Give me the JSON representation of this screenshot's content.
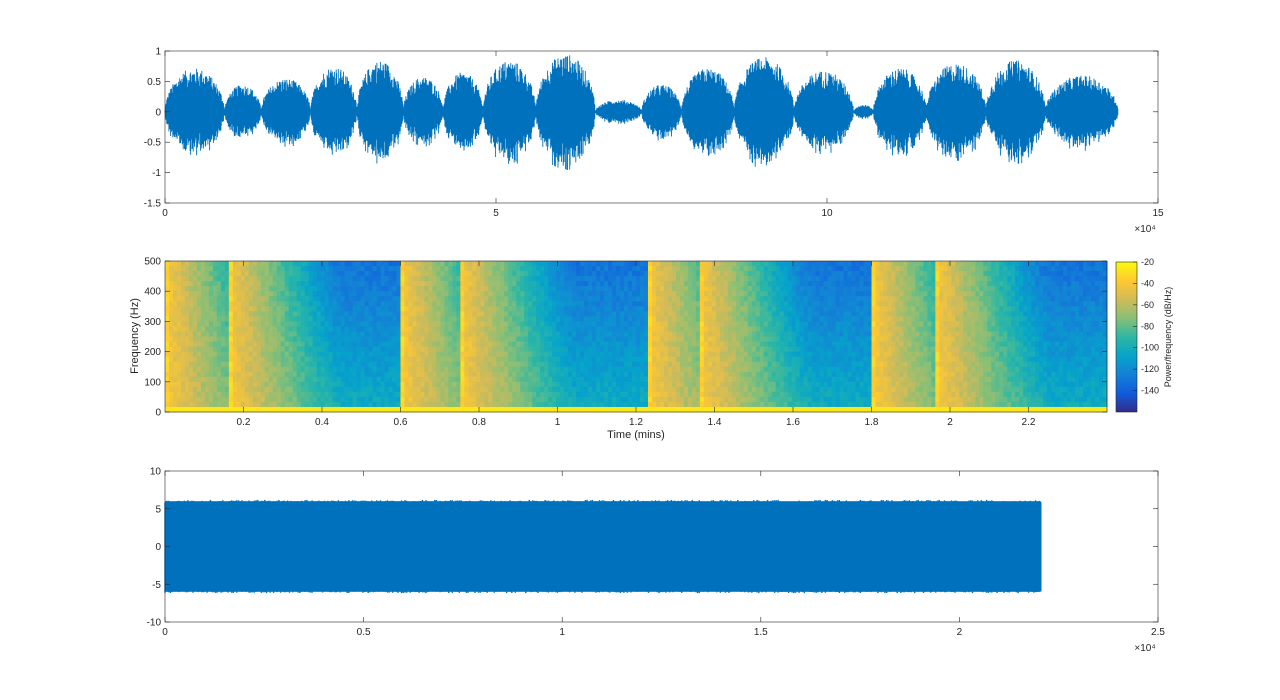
{
  "chart_data": [
    {
      "type": "line",
      "description_role": "waveform",
      "xlim": [
        0,
        150000
      ],
      "ylim": [
        -1.5,
        1
      ],
      "xticks": [
        0,
        5,
        10,
        15
      ],
      "xtick_labels": [
        "0",
        "5",
        "10",
        "15"
      ],
      "x_exponent_label": "×10⁴",
      "yticks": [
        -1.5,
        -1,
        -0.5,
        0,
        0.5,
        1
      ],
      "ytick_labels": [
        "-1.5",
        "-1",
        "-0.5",
        "0",
        "0.5",
        "1"
      ],
      "signal_end": 144000,
      "series_color": "#0072BD",
      "bursts": [
        {
          "start": 0,
          "end": 9000,
          "amp": 0.72
        },
        {
          "start": 9000,
          "end": 14500,
          "amp": 0.45
        },
        {
          "start": 14500,
          "end": 22000,
          "amp": 0.55
        },
        {
          "start": 22000,
          "end": 29000,
          "amp": 0.75
        },
        {
          "start": 29000,
          "end": 36000,
          "amp": 0.85
        },
        {
          "start": 36000,
          "end": 42000,
          "amp": 0.58
        },
        {
          "start": 42000,
          "end": 48000,
          "amp": 0.65
        },
        {
          "start": 48000,
          "end": 56000,
          "amp": 0.85
        },
        {
          "start": 56000,
          "end": 65000,
          "amp": 0.95
        },
        {
          "start": 65000,
          "end": 72000,
          "amp": 0.2
        },
        {
          "start": 72000,
          "end": 78000,
          "amp": 0.45
        },
        {
          "start": 78000,
          "end": 86000,
          "amp": 0.72
        },
        {
          "start": 86000,
          "end": 95000,
          "amp": 0.9
        },
        {
          "start": 95000,
          "end": 104000,
          "amp": 0.68
        },
        {
          "start": 104000,
          "end": 107000,
          "amp": 0.12
        },
        {
          "start": 107000,
          "end": 115000,
          "amp": 0.72
        },
        {
          "start": 115000,
          "end": 124000,
          "amp": 0.8
        },
        {
          "start": 124000,
          "end": 133000,
          "amp": 0.85
        },
        {
          "start": 133000,
          "end": 144000,
          "amp": 0.6
        }
      ]
    },
    {
      "type": "heatmap",
      "description_role": "spectrogram",
      "xlabel": "Time (mins)",
      "ylabel": "Frequency (Hz)",
      "xlim": [
        0.0,
        2.4
      ],
      "ylim": [
        0,
        500
      ],
      "xticks": [
        0.2,
        0.4,
        0.6,
        0.8,
        1,
        1.2,
        1.4,
        1.6,
        1.8,
        2,
        2.2
      ],
      "xtick_labels": [
        "0.2",
        "0.4",
        "0.6",
        "0.8",
        "1",
        "1.2",
        "1.4",
        "1.6",
        "1.8",
        "2",
        "2.2"
      ],
      "yticks": [
        0,
        100,
        200,
        300,
        400,
        500
      ],
      "ytick_labels": [
        "0",
        "100",
        "200",
        "300",
        "400",
        "500"
      ],
      "colorbar": {
        "label": "Power/frequency (dB/Hz)",
        "range": [
          -160,
          -20
        ],
        "ticks": [
          -20,
          -40,
          -60,
          -80,
          -100,
          -120,
          -140
        ],
        "tick_labels": [
          "-20",
          "-40",
          "-60",
          "-80",
          "-100",
          "-120",
          "-140"
        ]
      },
      "onsets": [
        0.0,
        0.16,
        0.6,
        0.75,
        1.23,
        1.36,
        1.8,
        1.96
      ],
      "colormap": [
        "#352A87",
        "#0F5CDD",
        "#1481D6",
        "#06A4CA",
        "#2EB7A4",
        "#87BF77",
        "#D1BB59",
        "#FEC832",
        "#F9FB0E"
      ]
    },
    {
      "type": "line",
      "description_role": "noise",
      "xlim": [
        0,
        25000
      ],
      "ylim": [
        -10,
        10
      ],
      "xticks": [
        0,
        0.5,
        1,
        1.5,
        2,
        2.5
      ],
      "xtick_labels": [
        "0",
        "0.5",
        "1",
        "1.5",
        "2",
        "2.5"
      ],
      "x_exponent_label": "×10⁴",
      "yticks": [
        -10,
        -5,
        0,
        5,
        10
      ],
      "ytick_labels": [
        "-10",
        "-5",
        "0",
        "5",
        "10"
      ],
      "signal_end": 22050,
      "amplitude": 6,
      "series_color": "#0072BD"
    }
  ]
}
